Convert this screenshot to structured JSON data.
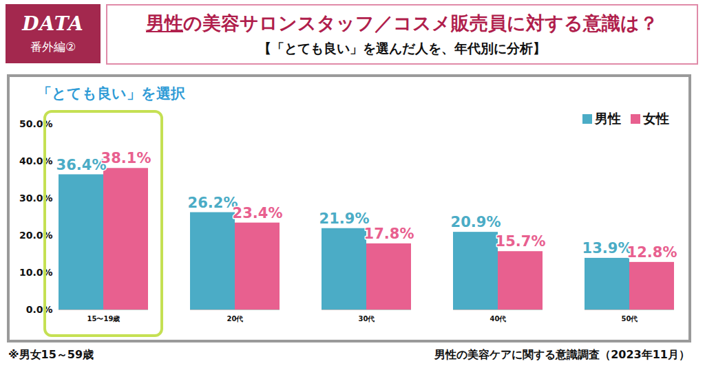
{
  "chart_data": {
    "type": "bar",
    "badge": [
      "DATA",
      "番外編②"
    ],
    "title": "男性の美容サロンスタッフ／コスメ販売員に対する意識は？",
    "subtitle": "【「とても良い」を選んだ人を、年代別に分析】",
    "panel_title": "「とても良い」を選択",
    "note": "※男女15～59歳",
    "source": "男性の美容ケアに関する意識調査（2023年11月）",
    "categories": [
      "15〜19歳",
      "20代",
      "30代",
      "40代",
      "50代"
    ],
    "series": [
      {
        "name": "男性",
        "color": "#4BACC6",
        "values": [
          36.4,
          26.2,
          21.9,
          20.9,
          13.9
        ],
        "value_labels": [
          "36.4%",
          "26.2%",
          "21.9%",
          "20.9%",
          "13.9%"
        ]
      },
      {
        "name": "女性",
        "color": "#E8608F",
        "values": [
          38.1,
          23.4,
          17.8,
          15.7,
          12.8
        ],
        "value_labels": [
          "38.1%",
          "23.4%",
          "17.8%",
          "15.7%",
          "12.8%"
        ]
      }
    ],
    "ylim": [
      0,
      50
    ],
    "yticks": [
      {
        "value": 0,
        "label": "0.0%"
      },
      {
        "value": 10,
        "label": "10.0%"
      },
      {
        "value": 20,
        "label": "20.0%"
      },
      {
        "value": 30,
        "label": "30.0%"
      },
      {
        "value": 40,
        "label": "40.0%"
      },
      {
        "value": 50,
        "label": "50.0%"
      }
    ],
    "grid": false,
    "legend": "top-right",
    "data_labels": true
  }
}
